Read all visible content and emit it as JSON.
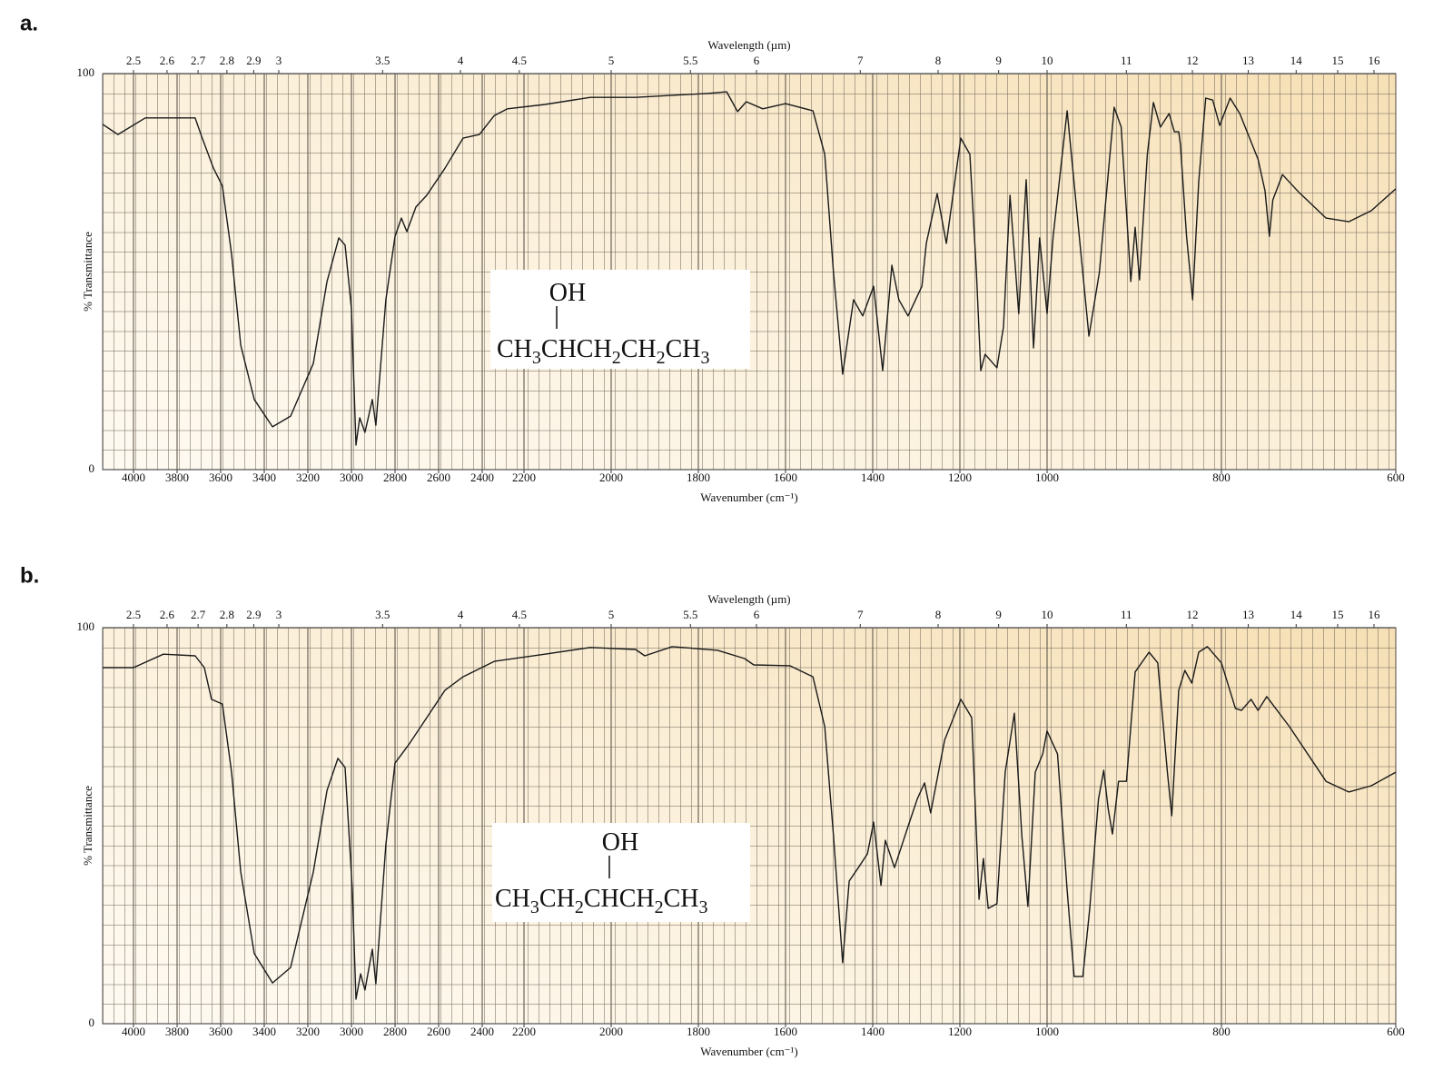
{
  "chart_data": [
    {
      "type": "line",
      "label": "a.",
      "x2label": "Wavelength (µm)",
      "xlabel": "Wavenumber (cm⁻¹)",
      "ylabel": "% Transmittance",
      "annotation": {
        "substituent": "OH",
        "formula_parts": [
          [
            "CH",
            "3"
          ],
          [
            "CHCH",
            "2"
          ],
          [
            "CH",
            "2"
          ],
          [
            "CH",
            "3"
          ]
        ]
      },
      "xlim": [
        4140,
        600
      ],
      "xticks": [
        4000,
        3800,
        3600,
        3400,
        3200,
        3000,
        2800,
        2600,
        2400,
        2200,
        2000,
        1800,
        1600,
        1400,
        1200,
        1000,
        800,
        600
      ],
      "x2ticks": [
        2.5,
        2.6,
        2.7,
        2.8,
        2.9,
        3,
        3.5,
        4,
        4.5,
        5,
        5.5,
        6,
        7,
        8,
        9,
        10,
        11,
        12,
        13,
        14,
        15,
        16
      ],
      "ylim": [
        0,
        100
      ],
      "yticks": [
        0,
        100
      ],
      "color": "#1a1a1a",
      "x": [
        4140,
        4071,
        3946,
        3717,
        3688,
        3633,
        3592,
        3550,
        3508,
        3446,
        3362,
        3279,
        3175,
        3112,
        3058,
        3029,
        3000,
        2979,
        2962,
        2938,
        2904,
        2888,
        2842,
        2800,
        2771,
        2746,
        2704,
        2654,
        2571,
        2488,
        2413,
        2342,
        2279,
        2152,
        2048,
        1944,
        1777,
        1735,
        1710,
        1690,
        1652,
        1600,
        1537,
        1510,
        1490,
        1469,
        1444,
        1423,
        1398,
        1377,
        1356,
        1340,
        1319,
        1287,
        1277,
        1252,
        1231,
        1198,
        1177,
        1162,
        1152,
        1142,
        1115,
        1100,
        1085,
        1065,
        1048,
        1031,
        1017,
        1000,
        993,
        977,
        952,
        940,
        923,
        915,
        904,
        899,
        894,
        885,
        878,
        870,
        860,
        854,
        849,
        847,
        840,
        833,
        826,
        818,
        810,
        802,
        790,
        779,
        758,
        750,
        745,
        741,
        730,
        711,
        680,
        654,
        628,
        600
      ],
      "values": [
        87.2,
        84.6,
        88.8,
        88.8,
        84.2,
        76.1,
        71.6,
        54.4,
        31.4,
        17.7,
        10.8,
        13.5,
        26.8,
        47.5,
        58.5,
        56.7,
        40.6,
        6.2,
        13.1,
        9.4,
        17.7,
        11.2,
        42.9,
        58.9,
        63.5,
        60.1,
        66.3,
        69.3,
        76.1,
        83.7,
        84.6,
        89.4,
        91.1,
        92.2,
        94,
        94,
        95,
        95.4,
        90.4,
        92.9,
        91.1,
        92.4,
        90.6,
        79.6,
        49.8,
        24.1,
        42.9,
        38.8,
        46.3,
        25,
        51.6,
        42.9,
        38.8,
        46.3,
        57.1,
        69.7,
        57.1,
        83.7,
        79.6,
        49.8,
        25,
        29.1,
        25.7,
        36,
        69.3,
        39.4,
        73.2,
        30.7,
        58.5,
        39.4,
        58.9,
        90.6,
        33.7,
        49.8,
        91.5,
        86.5,
        47.5,
        61.2,
        47.9,
        79.6,
        92.7,
        86.5,
        89.9,
        85.3,
        85.3,
        81.9,
        58.9,
        42.9,
        72.7,
        93.8,
        93.3,
        86.9,
        93.8,
        89.9,
        78.4,
        70.4,
        58.9,
        68.1,
        74.5,
        70,
        63.5,
        62.6,
        65.4,
        70.9
      ]
    },
    {
      "type": "line",
      "label": "b.",
      "x2label": "Wavelength (µm)",
      "xlabel": "Wavenumber (cm⁻¹)",
      "ylabel": "% Transmittance",
      "annotation": {
        "substituent": "OH",
        "formula_parts": [
          [
            "CH",
            "3"
          ],
          [
            "CH",
            "2"
          ],
          [
            "CHCH",
            "2"
          ],
          [
            "CH",
            "3"
          ]
        ]
      },
      "xlim": [
        4140,
        600
      ],
      "xticks": [
        4000,
        3800,
        3600,
        3400,
        3200,
        3000,
        2800,
        2600,
        2400,
        2200,
        2000,
        1800,
        1600,
        1400,
        1200,
        1000,
        800,
        600
      ],
      "x2ticks": [
        2.5,
        2.6,
        2.7,
        2.8,
        2.9,
        3,
        3.5,
        4,
        4.5,
        5,
        5.5,
        6,
        7,
        8,
        9,
        10,
        11,
        12,
        13,
        14,
        15,
        16
      ],
      "ylim": [
        0,
        100
      ],
      "yticks": [
        0,
        100
      ],
      "color": "#1a1a1a",
      "x": [
        4140,
        4000,
        3863,
        3717,
        3675,
        3642,
        3592,
        3550,
        3508,
        3446,
        3362,
        3279,
        3175,
        3112,
        3062,
        3029,
        2996,
        2979,
        2958,
        2938,
        2904,
        2888,
        2842,
        2800,
        2738,
        2654,
        2571,
        2488,
        2342,
        2152,
        2048,
        1944,
        1923,
        1860,
        1756,
        1694,
        1673,
        1590,
        1537,
        1510,
        1490,
        1469,
        1454,
        1433,
        1412,
        1398,
        1381,
        1371,
        1350,
        1319,
        1298,
        1281,
        1267,
        1235,
        1198,
        1173,
        1156,
        1146,
        1135,
        1115,
        1096,
        1075,
        1058,
        1044,
        1027,
        1010,
        1000,
        988,
        977,
        969,
        959,
        951,
        941,
        935,
        930,
        925,
        918,
        909,
        899,
        883,
        873,
        862,
        857,
        849,
        842,
        834,
        826,
        816,
        800,
        784,
        777,
        766,
        758,
        748,
        722,
        680,
        654,
        628,
        600
      ],
      "values": [
        89.9,
        89.9,
        93.3,
        92.9,
        89.9,
        81.9,
        80.7,
        63.5,
        38.3,
        17.7,
        10.3,
        14.2,
        38.3,
        58.9,
        67,
        64.7,
        33.7,
        6.2,
        12.6,
        8.5,
        18.8,
        10.1,
        45.2,
        65.8,
        70.4,
        77.3,
        84.2,
        87.6,
        91.5,
        93.3,
        95,
        94.5,
        92.9,
        95.2,
        94.3,
        92.2,
        90.6,
        90.4,
        87.6,
        75,
        47.5,
        15.4,
        36,
        39.4,
        42.9,
        50.9,
        34.9,
        46.3,
        39.4,
        49.8,
        56.7,
        60.8,
        53.2,
        71.6,
        81.9,
        77.3,
        31.4,
        41.7,
        29.1,
        30.3,
        63.5,
        78.4,
        47.5,
        29.6,
        63.5,
        68.1,
        73.9,
        68.1,
        33.7,
        11.9,
        11.9,
        29.1,
        56.7,
        64,
        54.4,
        47.9,
        61.2,
        61.2,
        88.8,
        93.8,
        91.1,
        63.5,
        52.5,
        84.2,
        89.2,
        86,
        93.8,
        95.2,
        91.1,
        79.6,
        79.1,
        81.9,
        79.1,
        82.6,
        75,
        61.2,
        58.5,
        60.1,
        63.5
      ]
    }
  ]
}
